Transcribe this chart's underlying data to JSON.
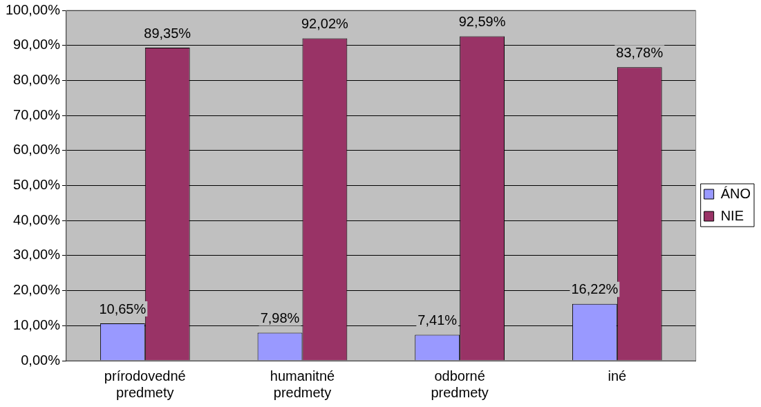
{
  "chart_data": {
    "type": "bar",
    "categories": [
      "prírodovedné predmety",
      "humanitné predmety",
      "odborné predmety",
      "iné"
    ],
    "series": [
      {
        "name": "ÁNO",
        "color": "#9999ff",
        "values": [
          10.65,
          7.98,
          7.41,
          16.22
        ],
        "value_labels": [
          "10,65%",
          "7,98%",
          "7,41%",
          "16,22%"
        ]
      },
      {
        "name": "NIE",
        "color": "#993366",
        "values": [
          89.35,
          92.02,
          92.59,
          83.78
        ],
        "value_labels": [
          "89,35%",
          "92,02%",
          "92,59%",
          "83,78%"
        ]
      }
    ],
    "ylim": [
      0,
      100
    ],
    "yticks": [
      {
        "value": 0,
        "label": "0,00%"
      },
      {
        "value": 10,
        "label": "10,00%"
      },
      {
        "value": 20,
        "label": "20,00%"
      },
      {
        "value": 30,
        "label": "30,00%"
      },
      {
        "value": 40,
        "label": "40,00%"
      },
      {
        "value": 50,
        "label": "50,00%"
      },
      {
        "value": 60,
        "label": "60,00%"
      },
      {
        "value": 70,
        "label": "70,00%"
      },
      {
        "value": 80,
        "label": "80,00%"
      },
      {
        "value": 90,
        "label": "90,00%"
      },
      {
        "value": 100,
        "label": "100,00%"
      }
    ],
    "grid": "y",
    "legend": "right"
  }
}
